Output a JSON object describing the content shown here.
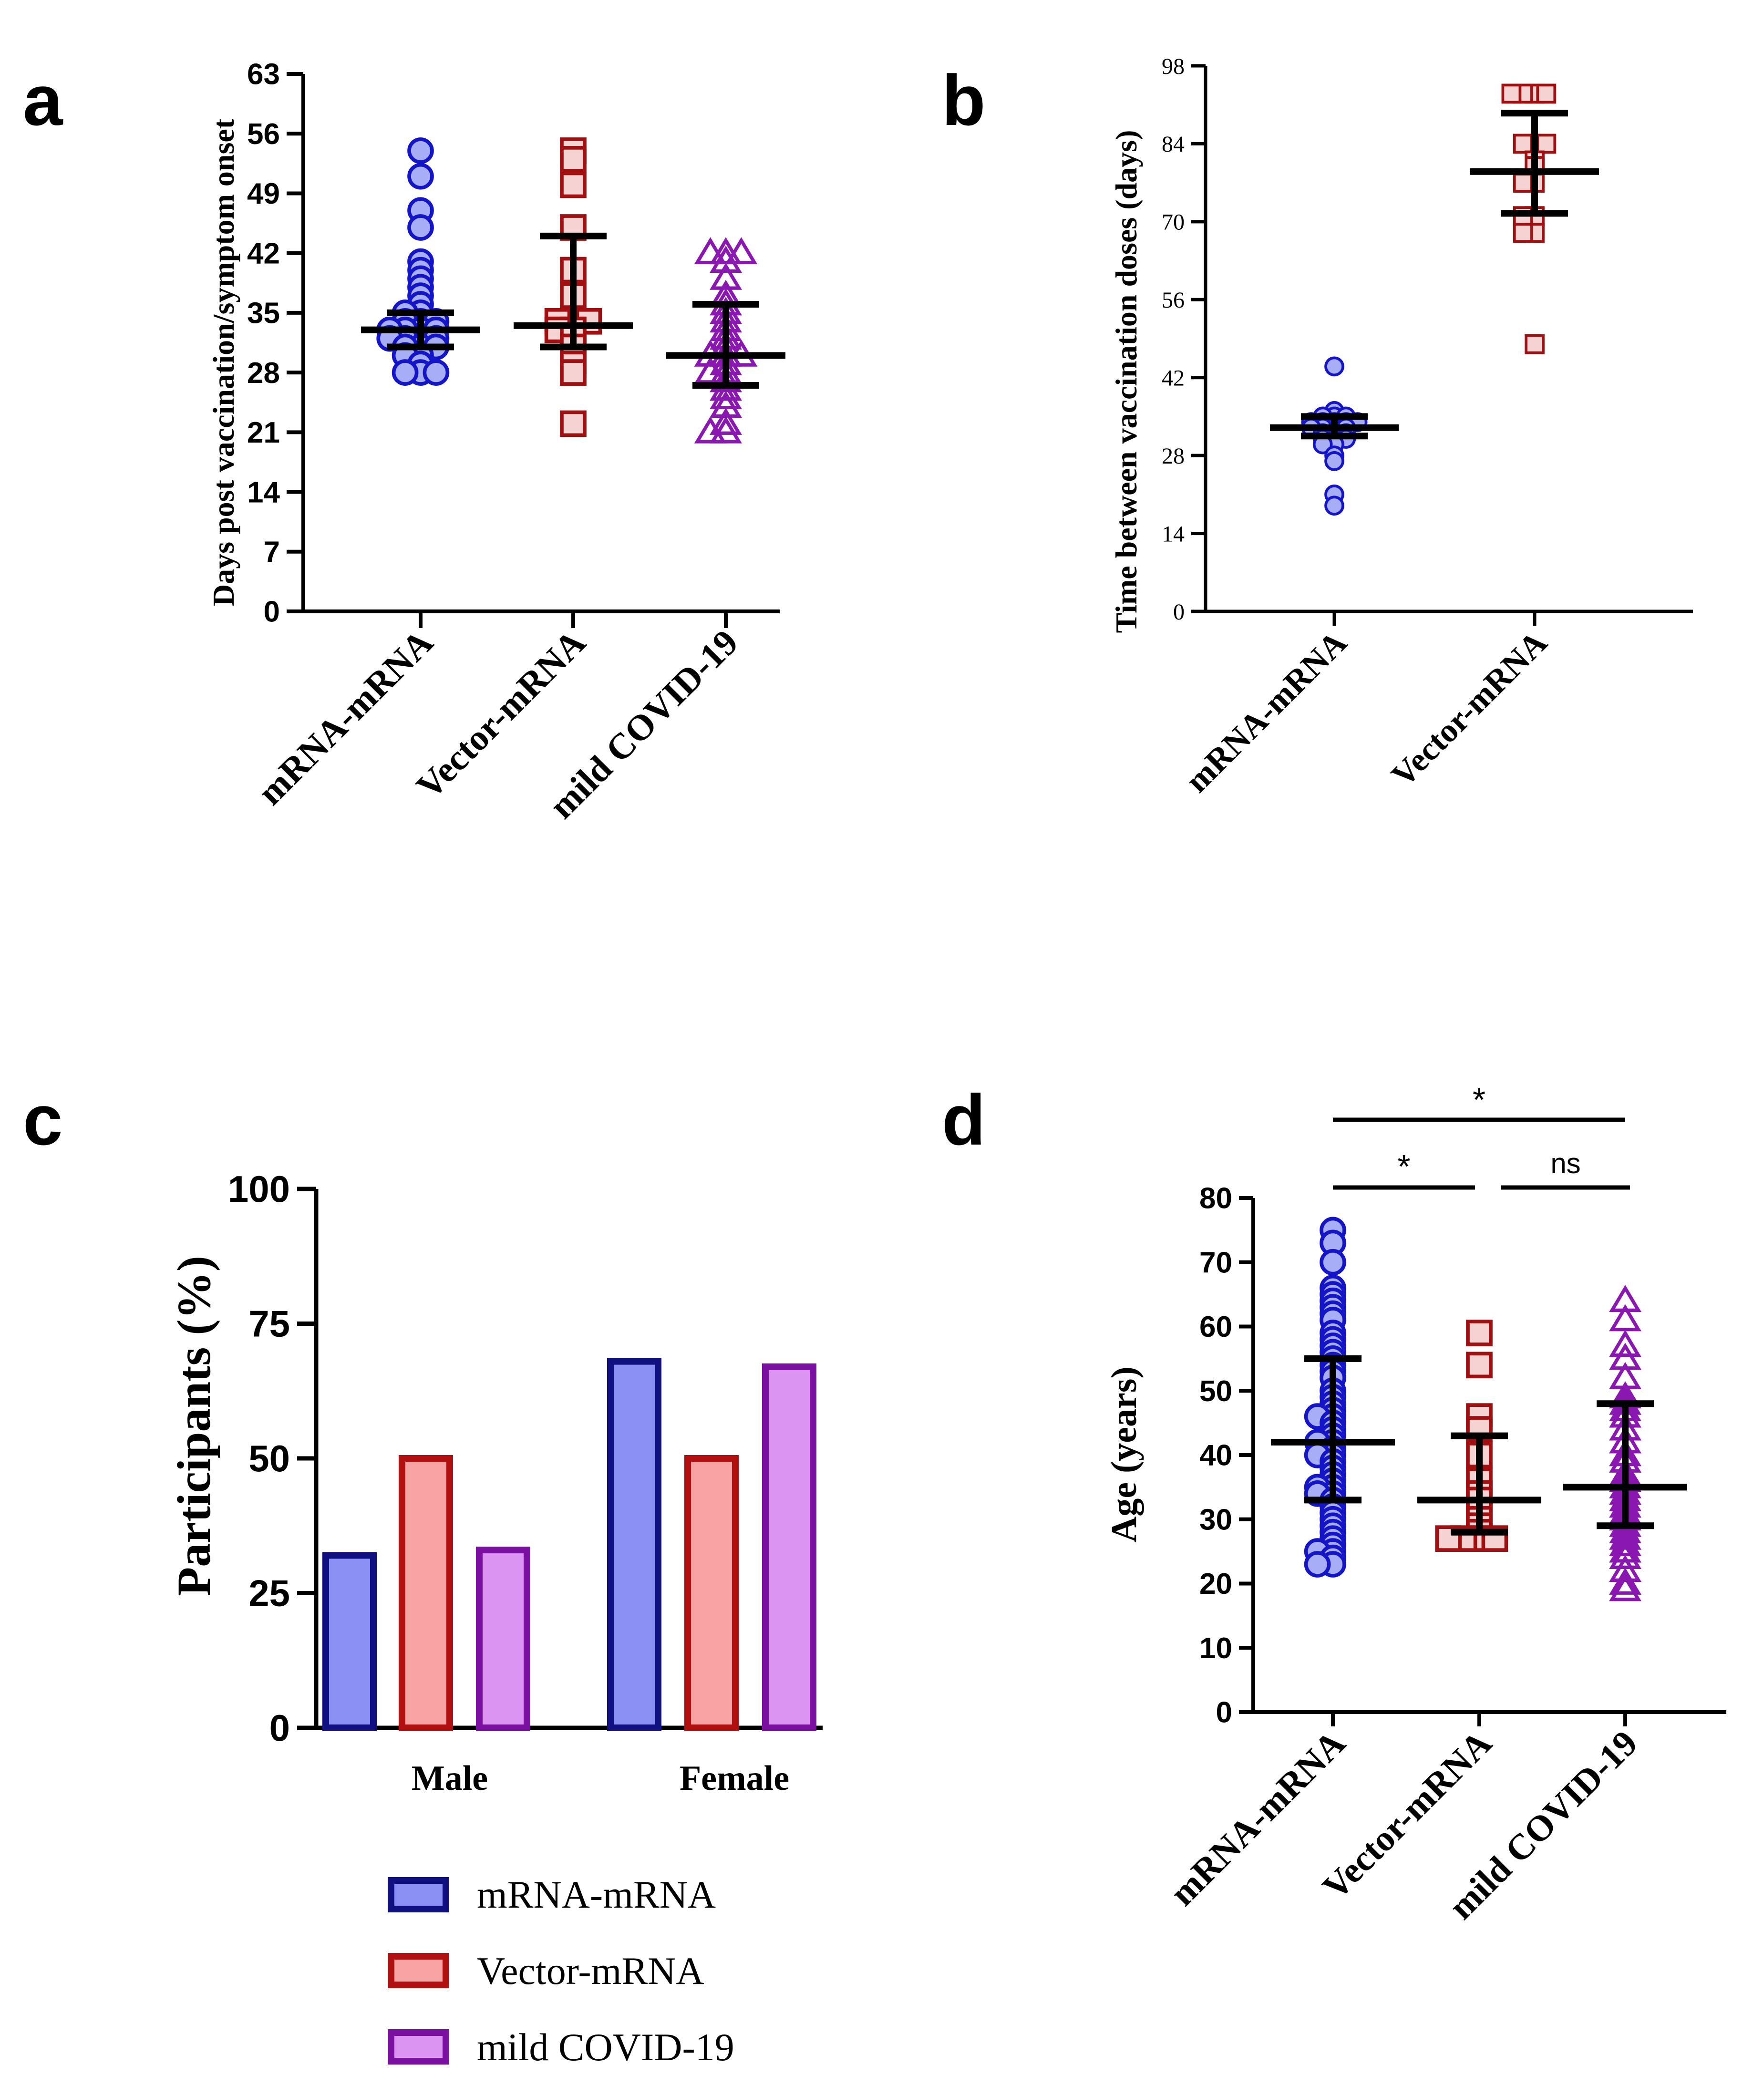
{
  "figure": {
    "colors": {
      "mrna_edge": "#1515c8",
      "mrna_fill": "#a8aef5",
      "vector_edge": "#a01010",
      "vector_fill": "#f6d3d3",
      "covid_edge": "#8a18b0",
      "covid_fill": "#f0d8f6",
      "bar_mrna_edge": "#101080",
      "bar_mrna_fill": "#8a90f4",
      "bar_vector_edge": "#b01010",
      "bar_vector_fill": "#f8a4a4",
      "bar_covid_edge": "#7a10a0",
      "bar_covid_fill": "#dc94f2",
      "axis": "#000000"
    }
  },
  "chart_data": [
    {
      "panel": "a",
      "type": "scatter",
      "ylabel": "Days post vaccination/symptom onset",
      "yticks": [
        0,
        7,
        14,
        21,
        28,
        35,
        42,
        49,
        56,
        63
      ],
      "ylim": [
        0,
        63
      ],
      "categories": [
        "mRNA-mRNA",
        "Vector-mRNA",
        "mild COVID-19"
      ],
      "series": [
        {
          "name": "mRNA-mRNA",
          "marker": "circle",
          "values": [
            54,
            51,
            47,
            45,
            41,
            40,
            39,
            38,
            37,
            36,
            35,
            35,
            34,
            34,
            34,
            33,
            33,
            33,
            33,
            32,
            32,
            32,
            32,
            31,
            31,
            31,
            30,
            30,
            29,
            28,
            28,
            28
          ],
          "median": 33,
          "q1": 31,
          "q3": 35
        },
        {
          "name": "Vector-mRNA",
          "marker": "square",
          "values": [
            54,
            53,
            50,
            45,
            40,
            37,
            34,
            34,
            34,
            33,
            33,
            32,
            31,
            29,
            28,
            22
          ],
          "median": 33.5,
          "q1": 31,
          "q3": 44
        },
        {
          "name": "mild COVID-19",
          "marker": "triangle",
          "values": [
            42,
            42,
            42,
            41,
            39,
            37,
            36,
            35,
            34,
            33,
            32,
            31,
            30,
            30,
            30,
            29,
            28,
            28,
            27,
            26,
            25,
            24,
            22,
            21,
            21
          ],
          "median": 30,
          "q1": 26.5,
          "q3": 36
        }
      ]
    },
    {
      "panel": "b",
      "type": "scatter",
      "ylabel": "Time between vaccination doses (days)",
      "yticks": [
        0,
        14,
        28,
        42,
        56,
        70,
        84,
        98
      ],
      "ylim": [
        0,
        98
      ],
      "categories": [
        "mRNA-mRNA",
        "Vector-mRNA"
      ],
      "series": [
        {
          "name": "mRNA-mRNA",
          "marker": "circle",
          "values": [
            44,
            36,
            35,
            35,
            35,
            34,
            34,
            34,
            34,
            34,
            33,
            33,
            33,
            33,
            32,
            32,
            32,
            31,
            31,
            31,
            30,
            30,
            28,
            27,
            21,
            19
          ],
          "median": 33,
          "q1": 31.5,
          "q3": 35
        },
        {
          "name": "Vector-mRNA",
          "marker": "square",
          "values": [
            93,
            93,
            93,
            93,
            84,
            84,
            84,
            81,
            80,
            77,
            77,
            71,
            71,
            68,
            68,
            48
          ],
          "median": 79,
          "q1": 71.5,
          "q3": 89.5
        }
      ]
    },
    {
      "panel": "c",
      "type": "bar",
      "ylabel": "Participants (%)",
      "yticks": [
        0,
        25,
        50,
        75,
        100
      ],
      "ylim": [
        0,
        100
      ],
      "categories": [
        "Male",
        "Female"
      ],
      "series": [
        {
          "name": "mRNA-mRNA",
          "values": [
            32,
            68
          ]
        },
        {
          "name": "Vector-mRNA",
          "values": [
            50,
            50
          ]
        },
        {
          "name": "mild COVID-19",
          "values": [
            33,
            67
          ]
        }
      ],
      "legend": [
        "mRNA-mRNA",
        "Vector-mRNA",
        "mild COVID-19"
      ]
    },
    {
      "panel": "d",
      "type": "scatter",
      "ylabel": "Age (years)",
      "yticks": [
        0,
        10,
        20,
        30,
        40,
        50,
        60,
        70,
        80
      ],
      "ylim": [
        0,
        80
      ],
      "categories": [
        "mRNA-mRNA",
        "Vector-mRNA",
        "mild COVID-19"
      ],
      "series": [
        {
          "name": "mRNA-mRNA",
          "marker": "circle",
          "values": [
            75,
            73,
            70,
            66,
            65,
            64,
            63,
            62,
            61,
            59,
            58,
            57,
            56,
            55,
            54,
            53,
            52,
            50,
            49,
            48,
            47,
            46,
            46,
            45,
            44,
            43,
            42,
            42,
            41,
            40,
            40,
            39,
            38,
            37,
            36,
            35,
            35,
            34,
            34,
            33,
            32,
            31,
            30,
            29,
            28,
            27,
            26,
            25,
            25,
            24,
            23,
            23
          ],
          "median": 42,
          "q1": 33,
          "q3": 55
        },
        {
          "name": "Vector-mRNA",
          "marker": "square",
          "values": [
            59,
            54,
            46,
            44,
            40,
            36,
            34,
            33,
            31,
            30,
            29,
            28,
            27,
            27,
            27,
            27
          ],
          "median": 33,
          "q1": 28,
          "q3": 43
        },
        {
          "name": "mild COVID-19",
          "marker": "triangle",
          "values": [
            64,
            61,
            57,
            55,
            52,
            49,
            48,
            47,
            46,
            44,
            42,
            40,
            39,
            37,
            36,
            35,
            34,
            33,
            32,
            31,
            30,
            29,
            28,
            27,
            26,
            25,
            24,
            22,
            20,
            19
          ],
          "median": 35,
          "q1": 29,
          "q3": 48
        }
      ],
      "significance": [
        {
          "from": "mRNA-mRNA",
          "to": "mild COVID-19",
          "label": "*"
        },
        {
          "from": "mRNA-mRNA",
          "to": "Vector-mRNA",
          "label": "*"
        },
        {
          "from": "Vector-mRNA",
          "to": "mild COVID-19",
          "label": "ns"
        }
      ]
    }
  ],
  "panel_labels": [
    "a",
    "b",
    "c",
    "d"
  ]
}
